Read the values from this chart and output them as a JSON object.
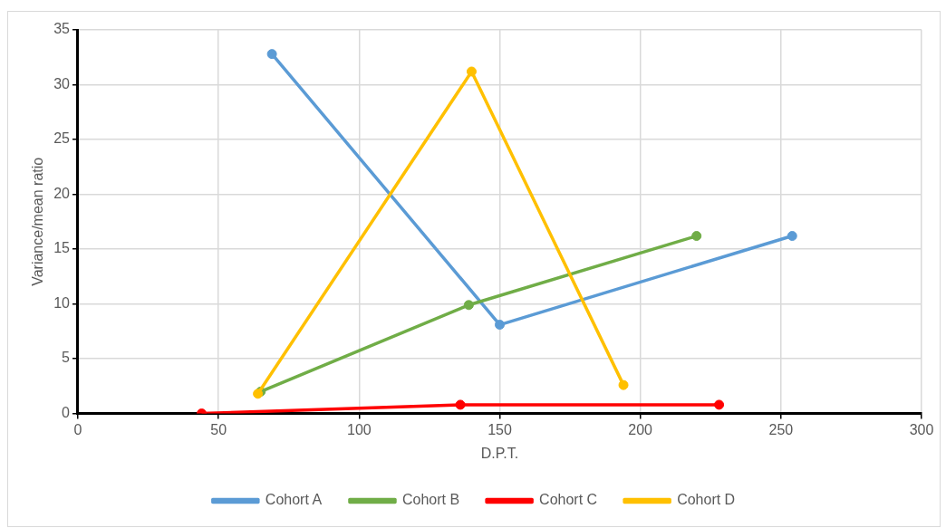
{
  "chart_data": {
    "type": "line",
    "xlabel": "D.P.T.",
    "ylabel": "Variance/mean ratio",
    "xlim": [
      0,
      300
    ],
    "xticks": [
      0,
      50,
      100,
      150,
      200,
      250,
      300
    ],
    "ylim": [
      0,
      35
    ],
    "yticks": [
      0,
      5,
      10,
      15,
      20,
      25,
      30,
      35
    ],
    "grid": true,
    "legend": "bottom",
    "marker": "circle",
    "line_style": "solid",
    "series": [
      {
        "name": "Cohort A",
        "color": "#5b9bd5",
        "x": [
          69,
          150,
          254
        ],
        "values": [
          32.8,
          8.1,
          16.2
        ]
      },
      {
        "name": "Cohort B",
        "color": "#70ad47",
        "x": [
          65,
          139,
          220
        ],
        "values": [
          2.0,
          9.9,
          16.2
        ]
      },
      {
        "name": "Cohort C",
        "color": "#ff0000",
        "x": [
          44,
          136,
          228
        ],
        "values": [
          0,
          0.8,
          0.8
        ]
      },
      {
        "name": "Cohort D",
        "color": "#ffc000",
        "x": [
          64,
          140,
          194
        ],
        "values": [
          1.8,
          31.2,
          2.6
        ]
      }
    ]
  }
}
